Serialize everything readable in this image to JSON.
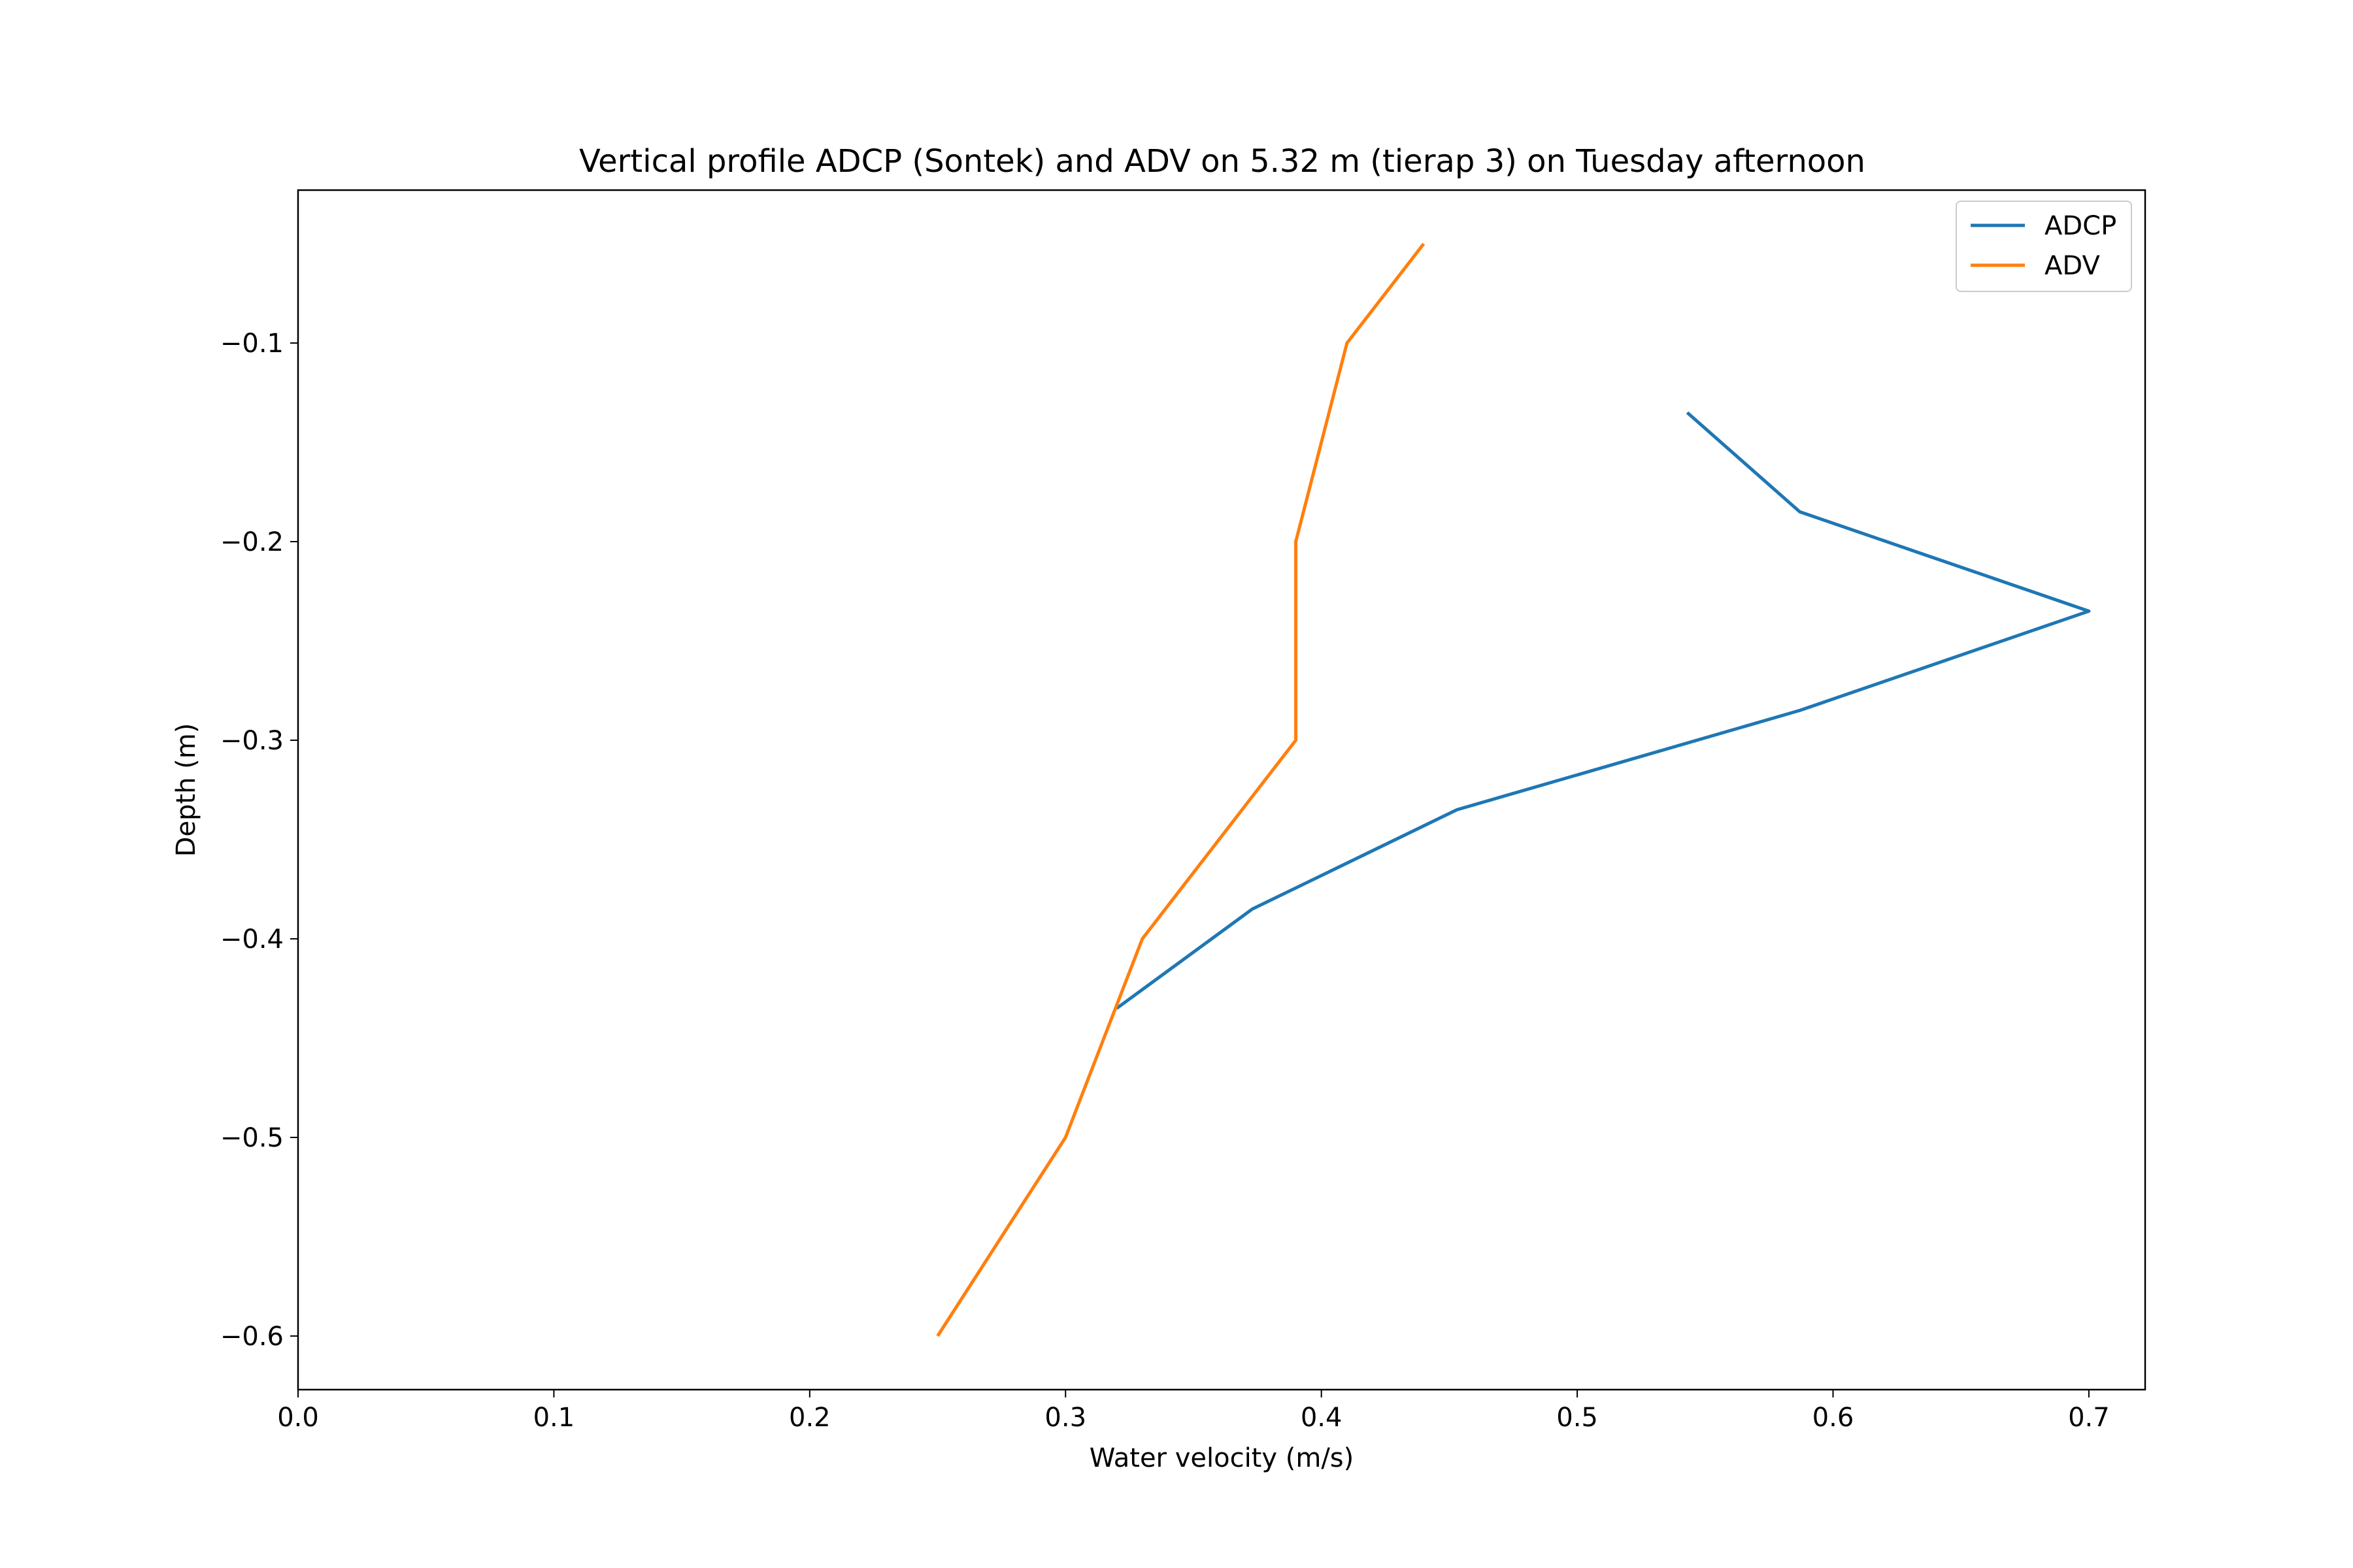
{
  "chart_data": {
    "type": "line",
    "title": "Vertical profile ADCP (Sontek) and ADV on 5.32 m (tierap 3) on Tuesday afternoon",
    "xlabel": "Water velocity (m/s)",
    "ylabel": "Depth (m)",
    "xlim": [
      0.0,
      0.722
    ],
    "ylim": [
      -0.627,
      -0.023
    ],
    "xticks": [
      0.0,
      0.1,
      0.2,
      0.3,
      0.4,
      0.5,
      0.6,
      0.7
    ],
    "xtick_labels": [
      "0.0",
      "0.1",
      "0.2",
      "0.3",
      "0.4",
      "0.5",
      "0.6",
      "0.7"
    ],
    "yticks": [
      -0.1,
      -0.2,
      -0.3,
      -0.4,
      -0.5,
      -0.6
    ],
    "ytick_labels": [
      "−0.1",
      "−0.2",
      "−0.3",
      "−0.4",
      "−0.5",
      "−0.6"
    ],
    "grid": false,
    "legend_position": "top-right",
    "series": [
      {
        "name": "ADCP",
        "color": "#1f77b4",
        "points": [
          [
            0.543,
            -0.135
          ],
          [
            0.587,
            -0.185
          ],
          [
            0.7,
            -0.235
          ],
          [
            0.587,
            -0.285
          ],
          [
            0.453,
            -0.335
          ],
          [
            0.373,
            -0.385
          ],
          [
            0.32,
            -0.435
          ]
        ]
      },
      {
        "name": "ADV",
        "color": "#ff7f0e",
        "points": [
          [
            0.44,
            -0.05
          ],
          [
            0.41,
            -0.1
          ],
          [
            0.39,
            -0.2
          ],
          [
            0.39,
            -0.3
          ],
          [
            0.33,
            -0.4
          ],
          [
            0.3,
            -0.5
          ],
          [
            0.25,
            -0.6
          ]
        ]
      }
    ]
  }
}
